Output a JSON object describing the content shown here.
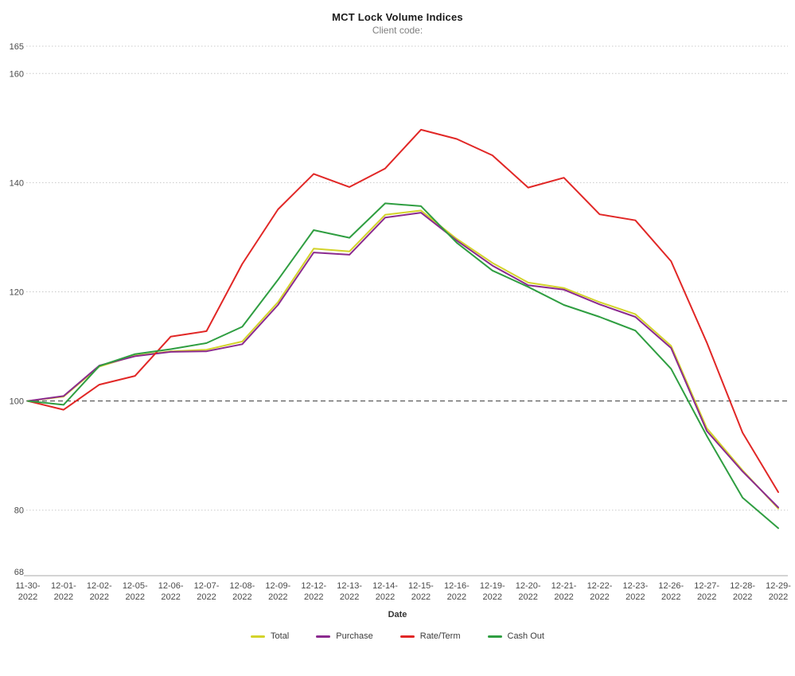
{
  "chart_data": {
    "type": "line",
    "title": "MCT Lock Volume Indices",
    "subtitle": "Client code:",
    "xlabel": "Date",
    "ylabel": "",
    "ylim": [
      68,
      165
    ],
    "yticks": [
      68,
      80,
      100,
      120,
      140,
      160,
      165
    ],
    "grid": "horizontal-dotted",
    "reference_line": {
      "value": 100,
      "style": "dashed",
      "color": "#3a3a3a"
    },
    "legend_position": "bottom",
    "categories": [
      "11-30-2022",
      "12-01-2022",
      "12-02-2022",
      "12-05-2022",
      "12-06-2022",
      "12-07-2022",
      "12-08-2022",
      "12-09-2022",
      "12-12-2022",
      "12-13-2022",
      "12-14-2022",
      "12-15-2022",
      "12-16-2022",
      "12-19-2022",
      "12-20-2022",
      "12-21-2022",
      "12-22-2022",
      "12-23-2022",
      "12-26-2022",
      "12-27-2022",
      "12-28-2022",
      "12-29-2022"
    ],
    "series": [
      {
        "name": "Total",
        "color": "#d3d32a",
        "values": [
          100,
          100.8,
          106.3,
          108.3,
          109.1,
          109.4,
          110.9,
          118.1,
          127.9,
          127.4,
          134.1,
          134.9,
          129.7,
          125.3,
          121.7,
          120.7,
          118.1,
          115.9,
          110.1,
          95.0,
          87.3,
          80.3
        ]
      },
      {
        "name": "Purchase",
        "color": "#8b2a8f",
        "values": [
          100,
          100.9,
          106.5,
          108.2,
          109.0,
          109.1,
          110.4,
          117.6,
          127.2,
          126.8,
          133.6,
          134.5,
          129.4,
          124.8,
          121.2,
          120.4,
          117.7,
          115.4,
          109.7,
          94.5,
          87.1,
          80.5
        ]
      },
      {
        "name": "Rate/Term",
        "color": "#e12726",
        "values": [
          100,
          98.4,
          103.0,
          104.6,
          111.8,
          112.8,
          125.1,
          135.1,
          141.6,
          139.2,
          142.6,
          149.7,
          148.0,
          145.0,
          139.1,
          140.9,
          134.2,
          133.1,
          125.6,
          110.7,
          94.2,
          83.3
        ]
      },
      {
        "name": "Cash Out",
        "color": "#2f9e41",
        "values": [
          100,
          99.3,
          106.4,
          108.6,
          109.5,
          110.6,
          113.6,
          122.2,
          131.3,
          129.9,
          136.2,
          135.7,
          129.0,
          123.9,
          120.9,
          117.6,
          115.4,
          112.9,
          105.9,
          93.6,
          82.3,
          76.7
        ]
      }
    ]
  }
}
